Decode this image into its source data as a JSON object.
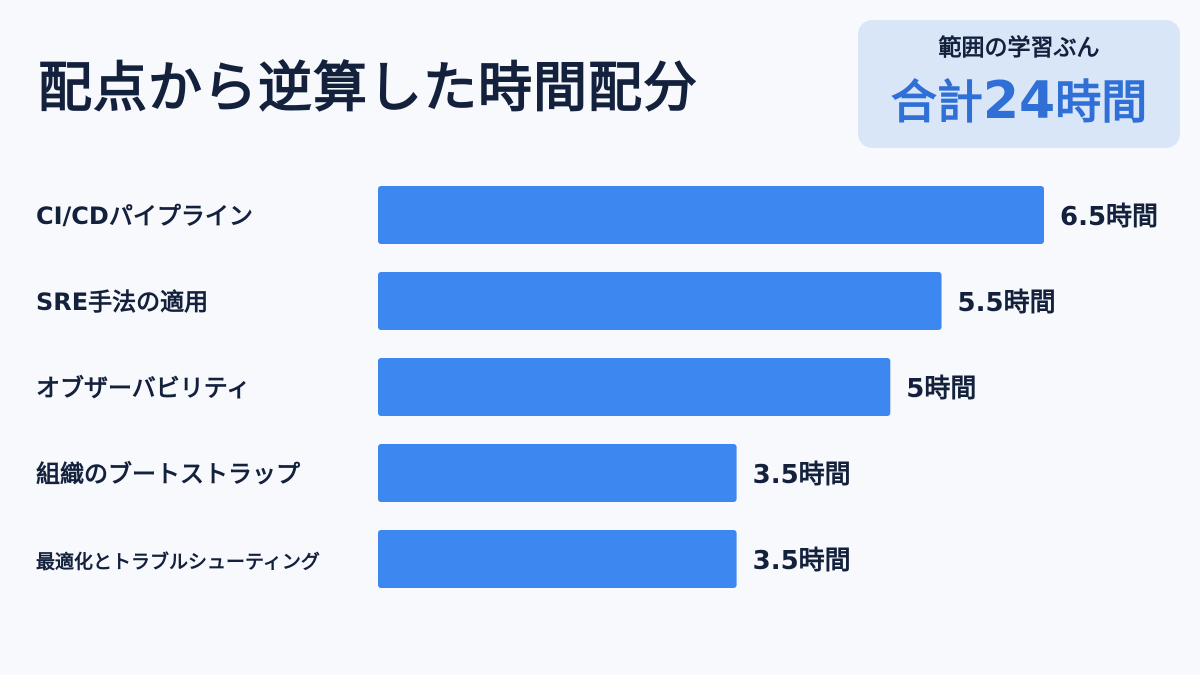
{
  "title": "配点から逆算した時間配分",
  "total": {
    "subtitle": "範囲の学習ぶん",
    "prefix": "合計",
    "value": "24",
    "suffix": "時間"
  },
  "colors": {
    "bar": "#3d87f0",
    "text": "#14213d",
    "accent": "#2f6fd6",
    "badge_bg": "#d9e6f8"
  },
  "chart_data": {
    "type": "bar",
    "orientation": "horizontal",
    "unit": "時間",
    "categories": [
      "CI/CDパイプライン",
      "SRE手法の適用",
      "オブザーバビリティ",
      "組織のブートストラップ",
      "最適化とトラブルシューティング"
    ],
    "values": [
      6.5,
      5.5,
      5,
      3.5,
      3.5
    ],
    "value_labels": [
      "6.5時間",
      "5.5時間",
      "5時間",
      "3.5時間",
      "3.5時間"
    ],
    "xlim": [
      0,
      6.5
    ],
    "grid": false,
    "legend": "none"
  }
}
